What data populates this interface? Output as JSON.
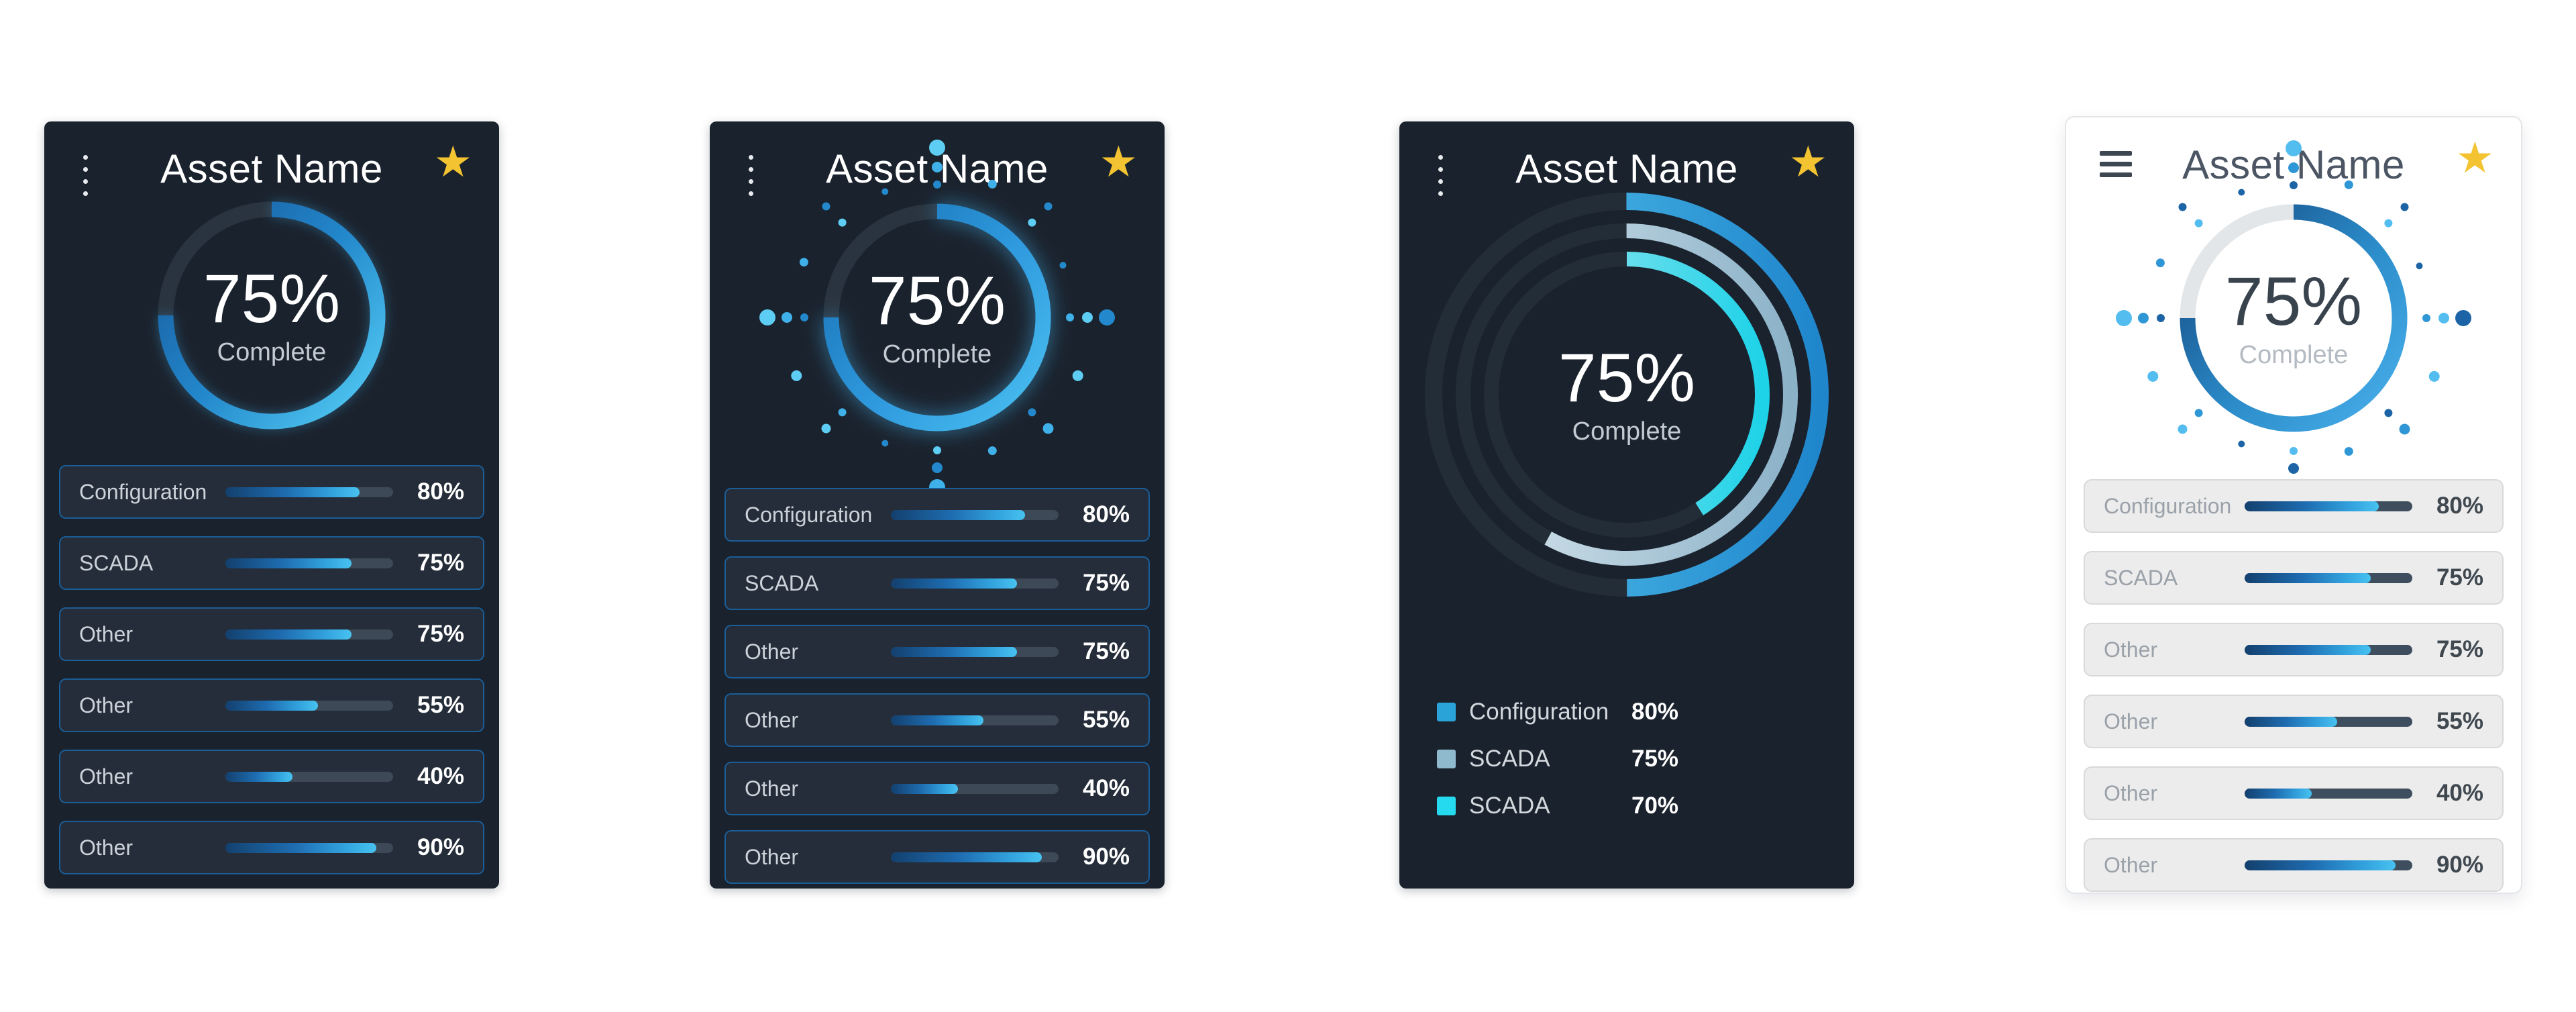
{
  "page": {
    "background": "#ffffff"
  },
  "cards": [
    {
      "id": "asset-card-1",
      "theme": "dark",
      "title": "Asset Name",
      "menu_icon": "kebab-vertical-icon",
      "favorite_icon": "star-icon",
      "favorite_color": "#f3c331",
      "gauge": {
        "percent": "75%",
        "caption": "Complete",
        "value": 75,
        "style": "solid-gradient-ring"
      },
      "rows": [
        {
          "label": "Configuration",
          "pct": "80%",
          "value": 80
        },
        {
          "label": "SCADA",
          "pct": "75%",
          "value": 75
        },
        {
          "label": "Other",
          "pct": "75%",
          "value": 75
        },
        {
          "label": "Other",
          "pct": "55%",
          "value": 55
        },
        {
          "label": "Other",
          "pct": "40%",
          "value": 40
        },
        {
          "label": "Other",
          "pct": "90%",
          "value": 90
        }
      ]
    },
    {
      "id": "asset-card-2",
      "theme": "dark",
      "title": "Asset Name",
      "menu_icon": "kebab-vertical-icon",
      "favorite_icon": "star-icon",
      "favorite_color": "#f3c331",
      "gauge": {
        "percent": "75%",
        "caption": "Complete",
        "value": 75,
        "style": "glow-ring-with-radial-dots"
      },
      "rows": [
        {
          "label": "Configuration",
          "pct": "80%",
          "value": 80
        },
        {
          "label": "SCADA",
          "pct": "75%",
          "value": 75
        },
        {
          "label": "Other",
          "pct": "75%",
          "value": 75
        },
        {
          "label": "Other",
          "pct": "55%",
          "value": 55
        },
        {
          "label": "Other",
          "pct": "40%",
          "value": 40
        },
        {
          "label": "Other",
          "pct": "90%",
          "value": 90
        }
      ]
    },
    {
      "id": "asset-card-3",
      "theme": "dark",
      "title": "Asset Name",
      "menu_icon": "kebab-vertical-icon",
      "favorite_icon": "star-icon",
      "favorite_color": "#f3c331",
      "gauge": {
        "percent": "75%",
        "caption": "Complete",
        "value": 75,
        "style": "triple-concentric-rings"
      },
      "legend": [
        {
          "label": "Configuration",
          "pct": "80%",
          "color": "#2aa3d9"
        },
        {
          "label": "SCADA",
          "pct": "75%",
          "color": "#8fb9cc"
        },
        {
          "label": "SCADA",
          "pct": "70%",
          "color": "#25d9ee"
        }
      ]
    },
    {
      "id": "asset-card-4",
      "theme": "light",
      "title": "Asset Name",
      "menu_icon": "hamburger-icon",
      "favorite_icon": "star-icon",
      "favorite_color": "#f3c331",
      "gauge": {
        "percent": "75%",
        "caption": "Complete",
        "value": 75,
        "style": "ring-with-radial-dots"
      },
      "rows": [
        {
          "label": "Configuration",
          "pct": "80%",
          "value": 80
        },
        {
          "label": "SCADA",
          "pct": "75%",
          "value": 75
        },
        {
          "label": "Other",
          "pct": "75%",
          "value": 75
        },
        {
          "label": "Other",
          "pct": "55%",
          "value": 55
        },
        {
          "label": "Other",
          "pct": "40%",
          "value": 40
        },
        {
          "label": "Other",
          "pct": "90%",
          "value": 90
        }
      ]
    }
  ]
}
